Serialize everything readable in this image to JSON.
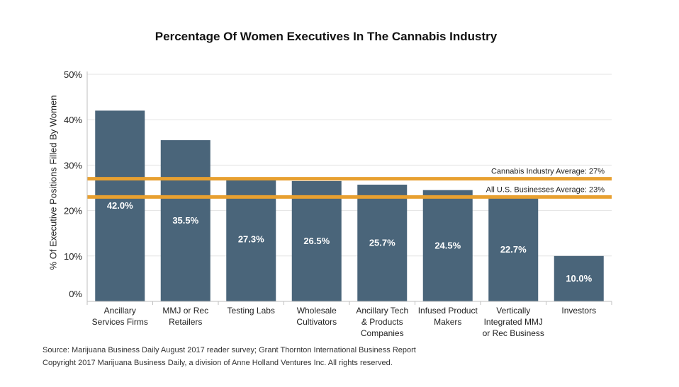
{
  "chart_data": {
    "type": "bar",
    "title": "Percentage Of Women Executives In The Cannabis Industry",
    "ylabel": "% Of Executive Positions Filled By Women",
    "xlabel": "",
    "ylim": [
      0,
      50
    ],
    "yticks": [
      "0%",
      "10%",
      "20%",
      "30%",
      "40%",
      "50%"
    ],
    "grid": true,
    "categories": [
      [
        "Ancillary",
        "Services Firms"
      ],
      [
        "MMJ or Rec",
        "Retailers"
      ],
      [
        "Testing Labs"
      ],
      [
        "Wholesale",
        "Cultivators"
      ],
      [
        "Ancillary Tech",
        "& Products",
        "Companies"
      ],
      [
        "Infused Product",
        "Makers"
      ],
      [
        "Vertically",
        "Integrated MMJ",
        "or Rec Business"
      ],
      [
        "Investors"
      ]
    ],
    "values": [
      42.0,
      35.5,
      27.3,
      26.5,
      25.7,
      24.5,
      22.7,
      10.0
    ],
    "value_labels": [
      "42.0%",
      "35.5%",
      "27.3%",
      "26.5%",
      "25.7%",
      "24.5%",
      "22.7%",
      "10.0%"
    ],
    "bar_color": "#4a657a",
    "reference_lines": [
      {
        "value": 27,
        "label": "Cannabis Industry Average: 27%",
        "color": "#e8a030"
      },
      {
        "value": 23,
        "label": "All U.S. Businesses Average: 23%",
        "color": "#e8a030"
      }
    ]
  },
  "footer": {
    "source": "Source: Marijuana Business Daily August 2017 reader survey; Grant Thornton International Business Report",
    "copyright": "Copyright 2017 Marijuana Business Daily, a division of Anne Holland Ventures Inc. All rights reserved."
  }
}
